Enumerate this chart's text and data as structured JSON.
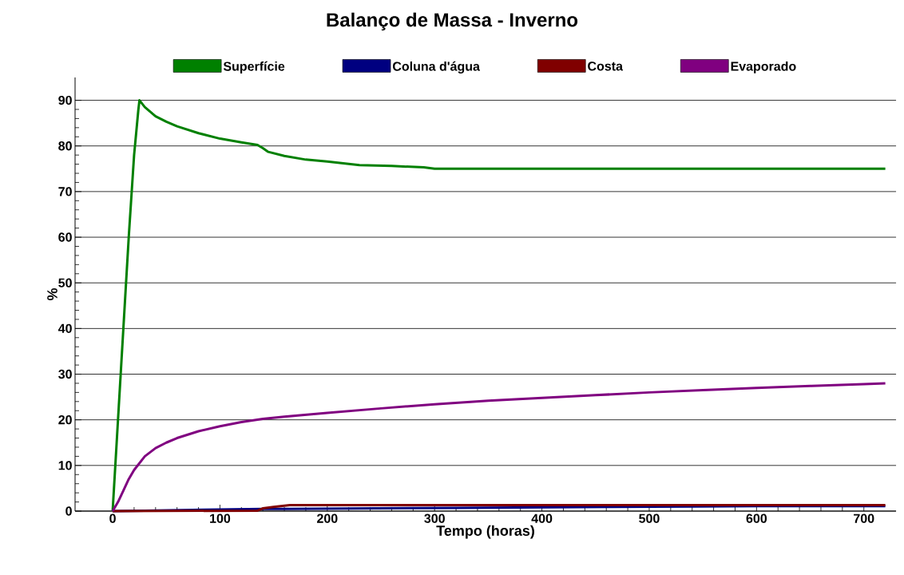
{
  "chart_data": {
    "type": "line",
    "title": "Balanço de Massa -  Inverno",
    "xlabel": "Tempo (horas)",
    "ylabel": "%",
    "xlim": [
      -35,
      730
    ],
    "ylim": [
      0,
      95
    ],
    "xticks": [
      0,
      100,
      200,
      300,
      400,
      500,
      600,
      700
    ],
    "yticks": [
      0,
      10,
      20,
      30,
      40,
      50,
      60,
      70,
      80,
      90
    ],
    "grid": "y",
    "legend": "top",
    "marker": "none",
    "line_style": "solid",
    "series": [
      {
        "name": "Superfície",
        "color": "#008000",
        "x": [
          0,
          5,
          10,
          15,
          20,
          24,
          25,
          30,
          40,
          50,
          60,
          80,
          100,
          120,
          135,
          140,
          145,
          160,
          180,
          200,
          230,
          260,
          290,
          300,
          400,
          500,
          600,
          720
        ],
        "values": [
          0,
          20,
          40,
          60,
          78,
          88,
          90,
          88.5,
          86.5,
          85.3,
          84.3,
          82.8,
          81.6,
          80.8,
          80.2,
          79.5,
          78.7,
          77.8,
          77,
          76.6,
          75.8,
          75.6,
          75.3,
          75,
          75,
          75,
          75,
          75
        ]
      },
      {
        "name": "Coluna d'água",
        "color": "#000080",
        "x": [
          0,
          30,
          85,
          140,
          160,
          320,
          460,
          540,
          600,
          720
        ],
        "values": [
          0,
          0.1,
          0.3,
          0.5,
          0.5,
          0.7,
          0.9,
          1.0,
          1.1,
          1.1
        ]
      },
      {
        "name": "Costa",
        "color": "#800000",
        "x": [
          0,
          135,
          140,
          150,
          165,
          720
        ],
        "values": [
          0,
          0.1,
          0.6,
          0.9,
          1.3,
          1.3
        ]
      },
      {
        "name": "Evaporado",
        "color": "#800080",
        "x": [
          0,
          5,
          10,
          15,
          20,
          25,
          30,
          40,
          50,
          60,
          80,
          100,
          120,
          140,
          160,
          200,
          250,
          300,
          350,
          400,
          450,
          500,
          550,
          600,
          650,
          700,
          720
        ],
        "values": [
          0,
          2,
          4.5,
          7,
          9,
          10.5,
          12,
          13.8,
          15,
          16,
          17.5,
          18.6,
          19.5,
          20.2,
          20.7,
          21.5,
          22.5,
          23.4,
          24.2,
          24.8,
          25.4,
          26,
          26.5,
          27,
          27.4,
          27.8,
          28
        ]
      }
    ]
  }
}
